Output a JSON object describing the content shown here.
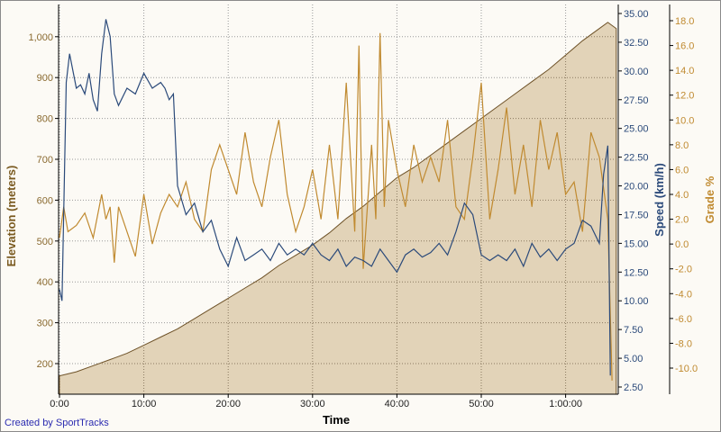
{
  "chart_data": {
    "type": "line",
    "title": "",
    "xlabel": "Time",
    "x_ticks": [
      "0:00",
      "10:00",
      "20:00",
      "30:00",
      "40:00",
      "50:00",
      "1:00:00"
    ],
    "xlim_minutes": [
      0,
      66
    ],
    "axes": {
      "elevation": {
        "label": "Elevation (meters)",
        "ticks": [
          "200",
          "300",
          "400",
          "500",
          "600",
          "700",
          "800",
          "900",
          "1,000"
        ],
        "ylim": [
          120,
          1080
        ],
        "color": "#7a5a20"
      },
      "speed": {
        "label": "Speed (km/h)",
        "ticks": [
          "2.50",
          "5.00",
          "7.50",
          "10.00",
          "12.50",
          "15.00",
          "17.50",
          "20.00",
          "22.50",
          "25.00",
          "27.50",
          "30.00",
          "32.50",
          "35.00"
        ],
        "ylim": [
          2.5,
          35
        ],
        "color": "#2b4a7a"
      },
      "grade": {
        "label": "Grade %",
        "ticks": [
          "-10.0",
          "-8.0",
          "-6.0",
          "-4.0",
          "-2.0",
          "0.0",
          "2.0",
          "4.0",
          "6.0",
          "8.0",
          "10.0",
          "12.0",
          "14.0",
          "16.0",
          "18.0"
        ],
        "ylim": [
          -10,
          18
        ],
        "color": "#c08a30"
      }
    },
    "series": [
      {
        "name": "Elevation",
        "unit": "m",
        "axis": "elevation",
        "style": "area",
        "x": [
          0,
          2,
          4,
          6,
          8,
          10,
          12,
          14,
          16,
          18,
          20,
          22,
          24,
          26,
          28,
          30,
          32,
          34,
          36,
          38,
          40,
          42,
          44,
          46,
          48,
          50,
          52,
          54,
          56,
          58,
          60,
          62,
          64,
          65,
          66
        ],
        "values": [
          170,
          180,
          195,
          210,
          225,
          245,
          265,
          285,
          310,
          335,
          360,
          385,
          410,
          440,
          465,
          490,
          520,
          555,
          585,
          620,
          655,
          680,
          710,
          740,
          770,
          800,
          830,
          860,
          890,
          920,
          955,
          990,
          1020,
          1035,
          1020
        ]
      },
      {
        "name": "Speed",
        "unit": "km/h",
        "axis": "speed",
        "x": [
          0,
          0.3,
          0.8,
          1.2,
          2,
          2.5,
          3,
          3.5,
          4,
          4.5,
          5,
          5.5,
          6,
          6.5,
          7,
          8,
          9,
          10,
          11,
          12,
          12.5,
          13,
          13.5,
          14,
          15,
          16,
          17,
          18,
          19,
          20,
          21,
          22,
          23,
          24,
          25,
          26,
          27,
          28,
          29,
          30,
          31,
          32,
          33,
          34,
          35,
          36,
          37,
          38,
          39,
          40,
          41,
          42,
          43,
          44,
          45,
          46,
          47,
          48,
          49,
          50,
          51,
          52,
          53,
          54,
          55,
          56,
          57,
          58,
          59,
          60,
          61,
          62,
          63,
          64,
          64.5,
          65,
          65.3
        ],
        "values": [
          11,
          10,
          29,
          31.5,
          28.5,
          28.8,
          28,
          29.8,
          27.5,
          26.5,
          31.5,
          34.5,
          33,
          28,
          27,
          28.5,
          28,
          29.8,
          28.5,
          29,
          28.5,
          27.5,
          28,
          20,
          17.5,
          18.5,
          16,
          17,
          14.5,
          13,
          15.5,
          13.5,
          14,
          14.5,
          13.5,
          15,
          14,
          14.5,
          14,
          15,
          14,
          13.5,
          14.5,
          13,
          13.8,
          13.5,
          13,
          14.5,
          13.5,
          12.5,
          14,
          14.5,
          13.8,
          14.2,
          15,
          14,
          16,
          18.5,
          17.5,
          14,
          13.5,
          14,
          13.5,
          14.5,
          13,
          15,
          13.8,
          14.5,
          13.5,
          14.5,
          15,
          17,
          16.5,
          15,
          21,
          23.5,
          3.5
        ]
      },
      {
        "name": "Grade",
        "unit": "%",
        "axis": "grade",
        "x": [
          0,
          0.5,
          1,
          2,
          3,
          4,
          5,
          5.5,
          6,
          6.5,
          7,
          7.5,
          8,
          9,
          10,
          10.5,
          11,
          12,
          13,
          14,
          15,
          16,
          17,
          18,
          19,
          20,
          21,
          22,
          23,
          24,
          25,
          26,
          27,
          28,
          29,
          30,
          31,
          32,
          33,
          34,
          35,
          35.5,
          36,
          37,
          37.5,
          38,
          38.5,
          39,
          40,
          41,
          42,
          43,
          44,
          45,
          46,
          47,
          48,
          49,
          50,
          51,
          52,
          53,
          54,
          55,
          56,
          57,
          58,
          59,
          60,
          61,
          62,
          63,
          64,
          65,
          65.5
        ],
        "values": [
          0.5,
          3,
          1,
          1.5,
          2.5,
          0.5,
          4,
          2,
          3,
          -1.5,
          3,
          2,
          1,
          -1,
          4,
          2,
          0,
          2.5,
          4,
          3,
          5,
          2,
          1,
          6,
          8,
          6,
          4,
          9,
          5,
          3,
          7,
          10,
          4,
          1,
          3,
          6,
          2,
          8,
          2,
          13,
          1,
          16,
          -2,
          8,
          2,
          17,
          3,
          10,
          6,
          3,
          8,
          5,
          7,
          5,
          10,
          3,
          2,
          7,
          13,
          2,
          6,
          11,
          4,
          8,
          3,
          10,
          6,
          9,
          4,
          5,
          1,
          9,
          7,
          2,
          -11
        ]
      }
    ]
  },
  "footer": {
    "credit": "Created by SportTracks"
  }
}
